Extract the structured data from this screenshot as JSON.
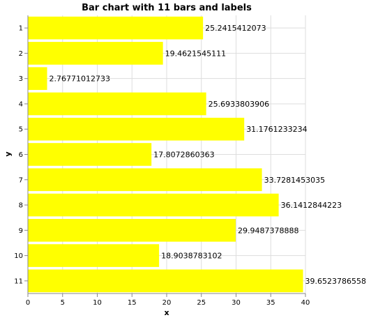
{
  "chart_data": {
    "type": "bar",
    "orientation": "horizontal",
    "title": "Bar chart with 11 bars and labels",
    "xlabel": "x",
    "ylabel": "y",
    "xlim": [
      0,
      40
    ],
    "x_ticks": [
      0,
      5,
      10,
      15,
      20,
      25,
      30,
      35,
      40
    ],
    "categories": [
      "1",
      "2",
      "3",
      "4",
      "5",
      "6",
      "7",
      "8",
      "9",
      "10",
      "11"
    ],
    "values": [
      25.2415412073,
      19.4621545111,
      2.76771012733,
      25.6933803906,
      31.1761233234,
      17.8072860363,
      33.7281453035,
      36.1412844223,
      29.9487378888,
      18.9038783102,
      39.6523786558
    ],
    "value_labels": [
      "25.2415412073",
      "19.4621545111",
      "2.76771012733",
      "25.6933803906",
      "31.1761233234",
      "17.8072860363",
      "33.7281453035",
      "36.1412844223",
      "29.9487378888",
      "18.9038783102",
      "39.6523786558"
    ],
    "bar_color": "#ffff00",
    "grid": true,
    "legend": "none"
  }
}
